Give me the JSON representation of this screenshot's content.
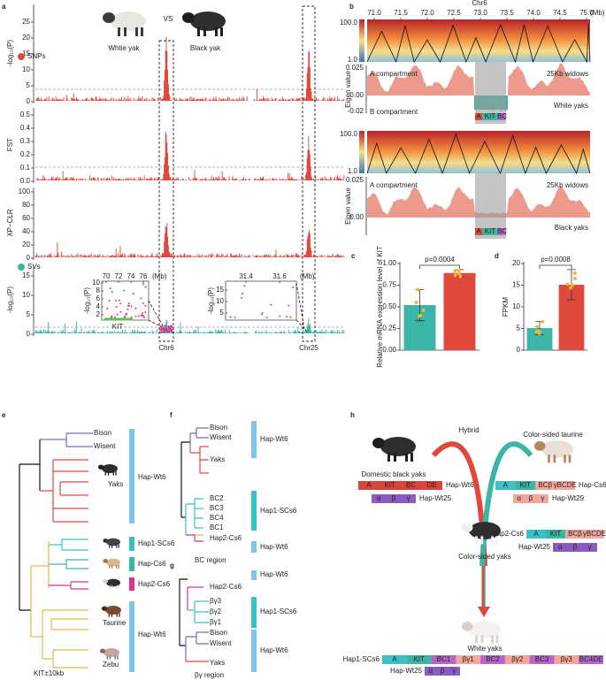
{
  "panel_a": {
    "label": "a",
    "left_animal": "Whtie yak",
    "vs": "VS",
    "right_animal": "Black yak",
    "snp_axis": "-log₁₀(P)",
    "snp_legend": "SNPs",
    "snp_yticks": [
      "0",
      "5",
      "10",
      "15",
      "20",
      "25"
    ],
    "fst_axis": "FST",
    "fst_yticks": [
      "0.0",
      "0.1",
      "0.2",
      "0.3",
      "0.4",
      "0.5"
    ],
    "xpclr_axis": "XP−CLR",
    "xpclr_yticks": [
      "0",
      "20",
      "40",
      "60",
      "80",
      "100"
    ],
    "sv_axis": "-log₁₀(P)",
    "sv_legend": "SVs",
    "sv_yticks": [
      "0",
      "5",
      "10",
      "15"
    ],
    "chromosomes": [
      "Chr6",
      "Chr25"
    ],
    "inset1": {
      "xticks": [
        "70",
        "72",
        "74",
        "76"
      ],
      "unit": "(Mb)",
      "yticks": [
        "2",
        "4",
        "6",
        "8",
        "10"
      ],
      "axis": "-log₁₀(P)",
      "gene": "KIT"
    },
    "inset2": {
      "xticks": [
        "31.4",
        "31.6"
      ],
      "unit": "(Mb)",
      "yticks": [
        "5",
        "10",
        "15"
      ],
      "axis": "-log₁₀(P)"
    }
  },
  "panel_b": {
    "label": "b",
    "chromosome": "Chr6",
    "xticks": [
      "71.0",
      "71.5",
      "72.0",
      "72.5",
      "73.0",
      "73.5",
      "74.0",
      "74.5",
      "75.0"
    ],
    "unit": "(Mb)",
    "tracks": [
      {
        "heat_max": "100.0",
        "heat_min": "1.0",
        "axis": "Eigen value",
        "yticks": [
          "0.025",
          "0.00",
          "-0.02"
        ],
        "top_label": "A compartment",
        "window": "25Kb widows",
        "bottom_label": "B compartment",
        "group": "White yaks",
        "genes": [
          "A",
          "KIT",
          "BC"
        ]
      },
      {
        "heat_max": "100.0",
        "heat_min": "1.0",
        "axis": "Eigen value",
        "yticks": [
          "0.025",
          "0.00"
        ],
        "top_label": "A compartment",
        "window": "25Kb widows",
        "group": "Black yaks",
        "genes": [
          "A",
          "KIT",
          "BC"
        ]
      }
    ]
  },
  "panel_c": {
    "label": "c",
    "type": "bar",
    "y_label": "Relative mRNA expression level of KIT",
    "p_value": "p=0.0004",
    "values": [
      0.52,
      0.89
    ],
    "errors": [
      0.18,
      0.04
    ],
    "colors": [
      "#3bb5a6",
      "#e0483c"
    ],
    "ylim": [
      0,
      1
    ],
    "yticks": [
      {
        "value": 0,
        "label": "0.00"
      },
      {
        "value": 0.25,
        "label": "0.25"
      },
      {
        "value": 0.5,
        "label": "0.50"
      },
      {
        "value": 0.75,
        "label": "0.75"
      },
      {
        "value": 1,
        "label": "1.00"
      }
    ]
  },
  "panel_d": {
    "label": "d",
    "type": "bar",
    "y_label": "FPKM",
    "p_value": "p=0.0008",
    "values": [
      5.1,
      15.1
    ],
    "errors": [
      1.5,
      3.5
    ],
    "colors": [
      "#3bb5a6",
      "#e0483c"
    ],
    "ylim": [
      0,
      20
    ],
    "yticks": [
      0,
      5,
      10,
      15,
      20
    ]
  },
  "panel_e": {
    "label": "e",
    "leaves": [
      "Bison",
      "Wisent",
      "Yaks",
      "Taurine",
      "Zebu"
    ],
    "groups": [
      "Hap-Wt6",
      "Hap1-SCs6",
      "Hap-Cs6",
      "Hap2-Cs6",
      "Hap-Wt6"
    ],
    "region": "KIT±10kb"
  },
  "panel_f": {
    "label": "f",
    "leaves": [
      "Bison",
      "Wisent",
      "Yaks",
      "BC2",
      "BC3",
      "BC4",
      "BC1",
      "Hap2-Cs6"
    ],
    "groups": [
      "Hap-Wt6",
      "Hap1-SCs6",
      "Hap-Wt6"
    ],
    "region": "BC region"
  },
  "panel_g": {
    "label": "g",
    "leaves": [
      "Hap2-Cs6",
      "βγ3",
      "βγ2",
      "βγ1",
      "Bison",
      "Wisent",
      "Yaks"
    ],
    "groups": [
      "Hap-Wt6",
      "Hap1-SCs6",
      "Hap-Wt6"
    ],
    "region": "βγ region"
  },
  "panel_h": {
    "label": "h",
    "parent1": "Domestic black yaks",
    "cross": "Hybrid",
    "parent2": "Color-sided taurine",
    "f1": "Color-sided yaks",
    "offspring": "White yaks",
    "haplotypes": [
      {
        "name": "Hap-Wt6",
        "segments": [
          "A",
          "KIT",
          "BC",
          "DE"
        ],
        "color": "#d9453a"
      },
      {
        "name": "Hap-Wt25",
        "segments": [
          "α",
          "β",
          "γ"
        ],
        "color": "#8a5cc0"
      },
      {
        "name": "Hap-Cs6",
        "segments": [
          "A",
          "KIT",
          "BCβ",
          "γBCDE"
        ],
        "color": "#f2a79c"
      },
      {
        "name": "Hap-Wt29",
        "segments": [
          "α",
          "β",
          "γ"
        ],
        "color": "#f2a79c"
      },
      {
        "name": "Hap2-Cs6",
        "segments": [
          "A",
          "KIT",
          "BCβ",
          "γBCDE"
        ],
        "color": "#f2a79c"
      },
      {
        "name": "Hap-Wt25",
        "segments": [
          "α",
          "β",
          "γ"
        ],
        "color": "#8a5cc0"
      },
      {
        "name": "Hap1-SCs6",
        "segments": [
          "A",
          "KIT",
          "BC1",
          "βγ1",
          "BC2",
          "βγ2",
          "BC3",
          "βγ3",
          "BC4DE"
        ],
        "color": "#f2a79c"
      },
      {
        "name": "Hap-Wt25",
        "segments": [
          "α",
          "β",
          "γ"
        ],
        "color": "#8a5cc0"
      }
    ]
  }
}
